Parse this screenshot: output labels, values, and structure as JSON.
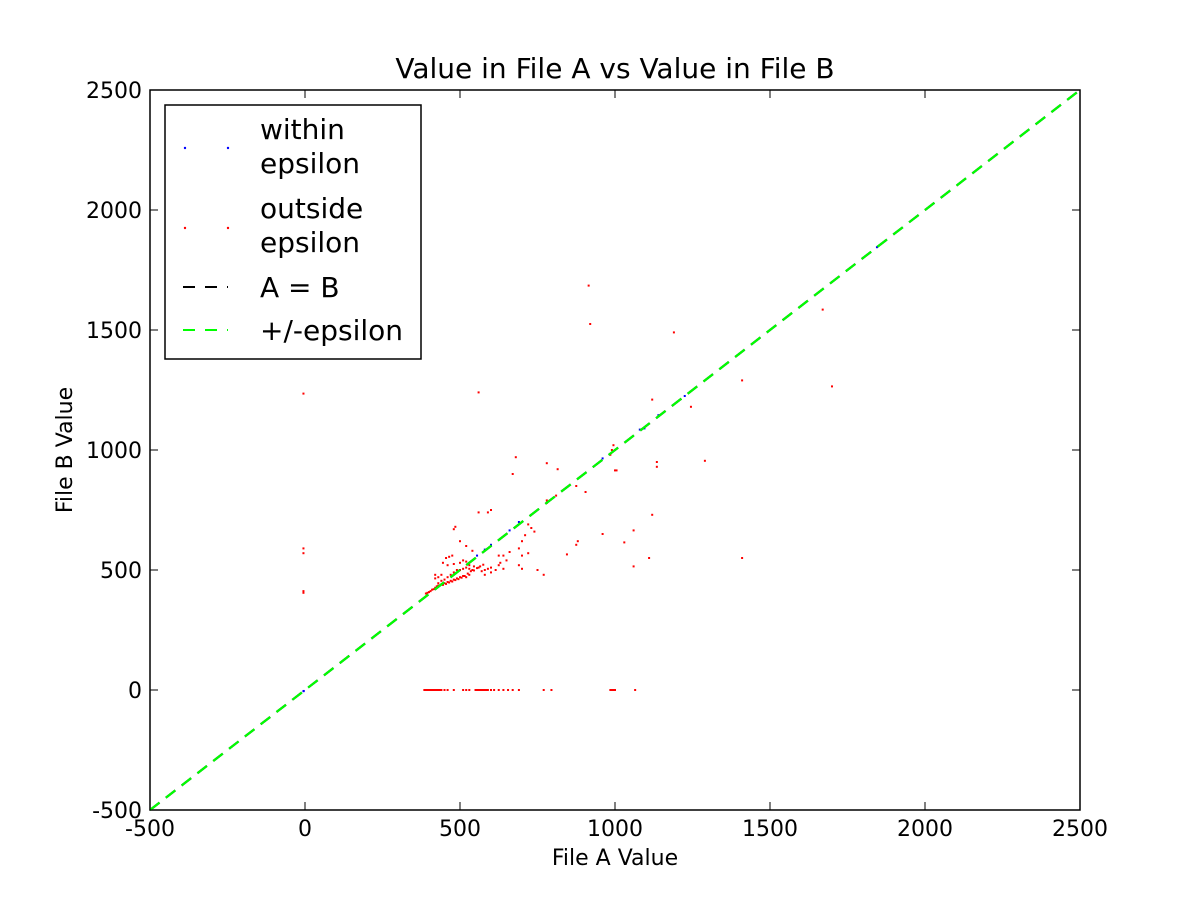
{
  "chart_data": {
    "type": "scatter",
    "title": "Value in File A vs Value in File B",
    "xlabel": "File A Value",
    "ylabel": "File B Value",
    "xlim": [
      -500,
      2500
    ],
    "ylim": [
      -500,
      2500
    ],
    "x_ticks": [
      -500,
      0,
      500,
      1000,
      1500,
      2000,
      2500
    ],
    "y_ticks": [
      -500,
      0,
      500,
      1000,
      1500,
      2000,
      2500
    ],
    "grid": false,
    "legend": {
      "placement": "top-left"
    },
    "series": [
      {
        "name": "within epsilon",
        "kind": "points",
        "color": "#0000ff",
        "points": [
          [
            -5,
            -5
          ],
          [
            -4,
            -4
          ],
          [
            555,
            560
          ],
          [
            580,
            585
          ],
          [
            600,
            605
          ],
          [
            660,
            665
          ],
          [
            690,
            700
          ],
          [
            960,
            965
          ],
          [
            1080,
            1085
          ],
          [
            1095,
            1090
          ],
          [
            1140,
            1145
          ],
          [
            1225,
            1225
          ],
          [
            1845,
            1845
          ]
        ]
      },
      {
        "name": "outside epsilon",
        "kind": "points",
        "color": "#ff0000",
        "points": [
          [
            -5,
            1235
          ],
          [
            -5,
            590
          ],
          [
            -5,
            570
          ],
          [
            -5,
            412
          ],
          [
            -5,
            405
          ],
          [
            915,
            1685
          ],
          [
            920,
            1525
          ],
          [
            1190,
            1490
          ],
          [
            1670,
            1585
          ],
          [
            1410,
            1290
          ],
          [
            1700,
            1265
          ],
          [
            560,
            1240
          ],
          [
            1120,
            1210
          ],
          [
            1245,
            1180
          ],
          [
            1290,
            955
          ],
          [
            1135,
            950
          ],
          [
            1135,
            930
          ],
          [
            995,
            1020
          ],
          [
            990,
            1000
          ],
          [
            985,
            980
          ],
          [
            1000,
            915
          ],
          [
            1005,
            915
          ],
          [
            780,
            945
          ],
          [
            815,
            920
          ],
          [
            680,
            970
          ],
          [
            875,
            850
          ],
          [
            905,
            825
          ],
          [
            810,
            810
          ],
          [
            780,
            790
          ],
          [
            780,
            780
          ],
          [
            960,
            650
          ],
          [
            1060,
            665
          ],
          [
            1030,
            615
          ],
          [
            880,
            620
          ],
          [
            875,
            605
          ],
          [
            845,
            565
          ],
          [
            1120,
            730
          ],
          [
            1110,
            550
          ],
          [
            1410,
            550
          ],
          [
            1060,
            515
          ],
          [
            770,
            480
          ],
          [
            750,
            500
          ],
          [
            720,
            690
          ],
          [
            710,
            645
          ],
          [
            730,
            675
          ],
          [
            740,
            660
          ],
          [
            700,
            620
          ],
          [
            690,
            590
          ],
          [
            700,
            560
          ],
          [
            720,
            570
          ],
          [
            660,
            575
          ],
          [
            640,
            560
          ],
          [
            630,
            530
          ],
          [
            600,
            510
          ],
          [
            580,
            500
          ],
          [
            590,
            740
          ],
          [
            600,
            750
          ],
          [
            560,
            740
          ],
          [
            670,
            900
          ],
          [
            690,
            520
          ],
          [
            700,
            505
          ],
          [
            650,
            540
          ],
          [
            625,
            560
          ],
          [
            540,
            580
          ],
          [
            520,
            600
          ],
          [
            500,
            620
          ],
          [
            480,
            670
          ],
          [
            485,
            680
          ],
          [
            465,
            555
          ],
          [
            475,
            560
          ],
          [
            455,
            550
          ],
          [
            445,
            530
          ],
          [
            460,
            520
          ],
          [
            480,
            525
          ],
          [
            500,
            530
          ],
          [
            510,
            540
          ],
          [
            520,
            535
          ],
          [
            530,
            520
          ],
          [
            545,
            515
          ],
          [
            560,
            510
          ],
          [
            570,
            495
          ],
          [
            580,
            480
          ],
          [
            590,
            505
          ],
          [
            600,
            490
          ],
          [
            615,
            500
          ],
          [
            625,
            520
          ],
          [
            640,
            505
          ],
          [
            540,
            500
          ],
          [
            530,
            480
          ],
          [
            520,
            470
          ],
          [
            510,
            475
          ],
          [
            500,
            470
          ],
          [
            490,
            465
          ],
          [
            480,
            460
          ],
          [
            470,
            455
          ],
          [
            460,
            450
          ],
          [
            450,
            445
          ],
          [
            440,
            440
          ],
          [
            430,
            445
          ],
          [
            425,
            432
          ],
          [
            420,
            426
          ],
          [
            415,
            420
          ],
          [
            410,
            418
          ],
          [
            405,
            412
          ],
          [
            400,
            408
          ],
          [
            395,
            405
          ],
          [
            390,
            402
          ],
          [
            420,
            480
          ],
          [
            430,
            470
          ],
          [
            440,
            455
          ],
          [
            450,
            460
          ],
          [
            460,
            470
          ],
          [
            470,
            480
          ],
          [
            480,
            490
          ],
          [
            490,
            500
          ],
          [
            500,
            500
          ],
          [
            510,
            505
          ],
          [
            520,
            510
          ],
          [
            530,
            505
          ],
          [
            440,
            480
          ],
          [
            420,
            465
          ],
          [
            430,
            435
          ],
          [
            445,
            438
          ],
          [
            455,
            442
          ],
          [
            465,
            448
          ],
          [
            475,
            452
          ],
          [
            485,
            458
          ],
          [
            495,
            462
          ],
          [
            505,
            468
          ],
          [
            515,
            475
          ],
          [
            525,
            485
          ],
          [
            535,
            495
          ],
          [
            545,
            498
          ],
          [
            555,
            508
          ],
          [
            565,
            515
          ],
          [
            575,
            522
          ],
          [
            385,
            0
          ],
          [
            390,
            0
          ],
          [
            395,
            0
          ],
          [
            400,
            0
          ],
          [
            405,
            0
          ],
          [
            410,
            0
          ],
          [
            415,
            0
          ],
          [
            420,
            0
          ],
          [
            425,
            0
          ],
          [
            430,
            0
          ],
          [
            435,
            0
          ],
          [
            440,
            0
          ],
          [
            450,
            0
          ],
          [
            460,
            0
          ],
          [
            480,
            0
          ],
          [
            510,
            0
          ],
          [
            520,
            0
          ],
          [
            530,
            0
          ],
          [
            550,
            0
          ],
          [
            555,
            0
          ],
          [
            560,
            0
          ],
          [
            565,
            0
          ],
          [
            570,
            0
          ],
          [
            575,
            0
          ],
          [
            580,
            0
          ],
          [
            585,
            0
          ],
          [
            590,
            0
          ],
          [
            600,
            0
          ],
          [
            610,
            0
          ],
          [
            625,
            0
          ],
          [
            640,
            0
          ],
          [
            655,
            0
          ],
          [
            670,
            0
          ],
          [
            690,
            0
          ],
          [
            770,
            0
          ],
          [
            795,
            0
          ],
          [
            985,
            0
          ],
          [
            990,
            0
          ],
          [
            995,
            0
          ],
          [
            1000,
            0
          ],
          [
            1065,
            0
          ]
        ]
      },
      {
        "name": "A = B",
        "kind": "line",
        "color": "#000000",
        "dashed": true,
        "x": [
          -500,
          2500
        ],
        "y": [
          -500,
          2500
        ]
      },
      {
        "name": "+/-epsilon",
        "kind": "line",
        "color": "#00ff00",
        "dashed": true,
        "x": [
          -500,
          2500
        ],
        "y": [
          -500,
          2500
        ]
      }
    ],
    "legend_entries": [
      "within",
      "epsilon",
      "outside",
      "epsilon",
      "A = B",
      "+/-epsilon"
    ]
  }
}
